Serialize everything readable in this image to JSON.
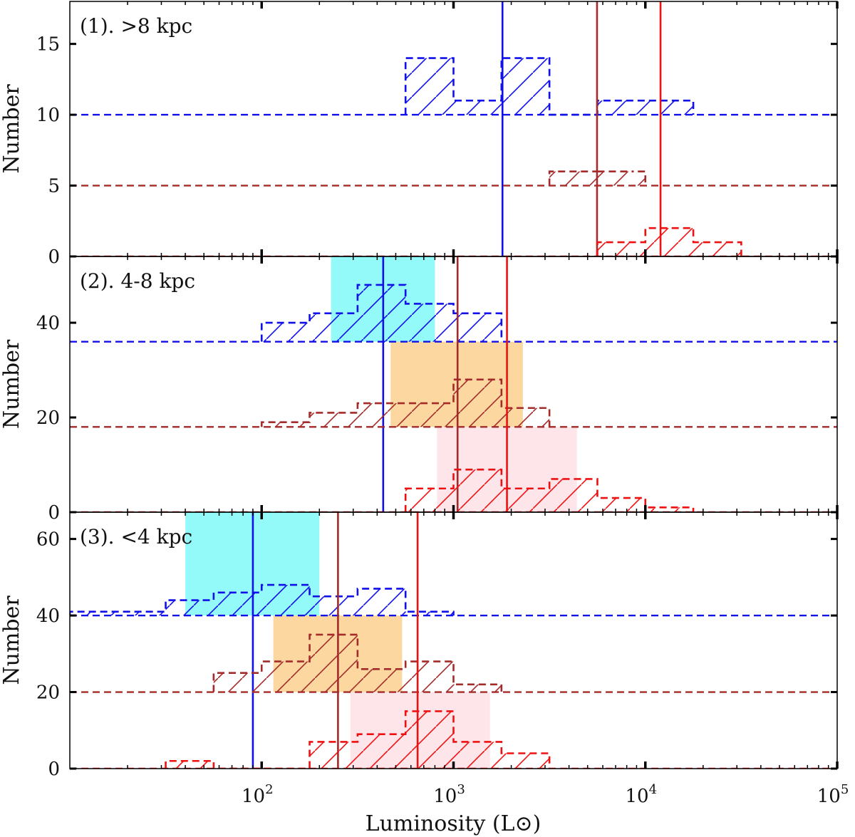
{
  "chart_data": {
    "type": "histogram",
    "xlabel": "Luminosity (L⊙)",
    "x_scale": "log",
    "xlim": [
      10,
      100000
    ],
    "x_ticks": [
      {
        "value": 100,
        "base": "10",
        "exp": "2"
      },
      {
        "value": 1000,
        "base": "10",
        "exp": "3"
      },
      {
        "value": 10000,
        "base": "10",
        "exp": "4"
      },
      {
        "value": 100000,
        "base": "10",
        "exp": "5"
      }
    ],
    "bin_edges": [
      10,
      17.8,
      31.6,
      56.2,
      100,
      177.8,
      316.2,
      562.3,
      1000,
      1778.3,
      3162.3,
      5623.4,
      10000,
      17782.8,
      31622.8,
      56234.1,
      100000
    ],
    "colors": {
      "blue": "#1010e8",
      "brown": "#a52a2a",
      "red": "#ee1111",
      "cyan": "#00f0f0",
      "orange": "#f7a21c",
      "pink": "#fbc1cc"
    },
    "panels": [
      {
        "title": "(1).  >8 kpc",
        "ylabel": "Number",
        "ylim": [
          0,
          18
        ],
        "yticks": [
          "0",
          "5",
          "10",
          "15"
        ],
        "yticks_values": [
          0,
          5,
          10,
          15
        ],
        "series": [
          {
            "name": "blue",
            "color_key": "blue",
            "baseline": 10,
            "counts": [
              0,
              0,
              0,
              0,
              0,
              0,
              0,
              4,
              1,
              4,
              0,
              1,
              1,
              0,
              0,
              0
            ],
            "median": 1800
          },
          {
            "name": "brown",
            "color_key": "brown",
            "baseline": 5,
            "counts": [
              0,
              0,
              0,
              0,
              0,
              0,
              0,
              0,
              0,
              0,
              1,
              1,
              0,
              0,
              0,
              0
            ],
            "median": 5600
          },
          {
            "name": "red",
            "color_key": "red",
            "baseline": 0,
            "counts": [
              0,
              0,
              0,
              0,
              0,
              0,
              0,
              0,
              0,
              0,
              0,
              1,
              2,
              1,
              0,
              0
            ],
            "median": 12000
          }
        ],
        "shaded_ranges": []
      },
      {
        "title": "(2).  4-8 kpc",
        "ylabel": "Number",
        "ylim": [
          0,
          54
        ],
        "yticks": [
          "0",
          "20",
          "40"
        ],
        "yticks_values": [
          0,
          20,
          40
        ],
        "series": [
          {
            "name": "blue",
            "color_key": "blue",
            "baseline": 36,
            "counts": [
              0,
              0,
              0,
              0,
              4,
              6,
              12,
              8,
              6,
              0,
              0,
              0,
              0,
              0,
              0,
              0
            ],
            "median": 430
          },
          {
            "name": "brown",
            "color_key": "brown",
            "baseline": 18,
            "counts": [
              0,
              0,
              0,
              0,
              1,
              3,
              5,
              5,
              10,
              4,
              0,
              0,
              0,
              0,
              0,
              0
            ],
            "median": 1050
          },
          {
            "name": "red",
            "color_key": "red",
            "baseline": 0,
            "counts": [
              0,
              0,
              0,
              0,
              0,
              0,
              0,
              5,
              9,
              5,
              7,
              3,
              1,
              0,
              0,
              0
            ],
            "median": 1900
          }
        ],
        "shaded_ranges": [
          {
            "color_key": "cyan",
            "x": [
              230,
              800
            ],
            "y": [
              36,
              54
            ]
          },
          {
            "color_key": "orange",
            "x": [
              470,
              2300
            ],
            "y": [
              18,
              36
            ]
          },
          {
            "color_key": "pink",
            "x": [
              820,
              4400
            ],
            "y": [
              0,
              18
            ]
          }
        ]
      },
      {
        "title": "(3).  <4 kpc",
        "ylabel": "Number",
        "ylim": [
          0,
          67
        ],
        "yticks": [
          "0",
          "20",
          "40",
          "60"
        ],
        "yticks_values": [
          0,
          20,
          40,
          60
        ],
        "series": [
          {
            "name": "blue",
            "color_key": "blue",
            "baseline": 40,
            "counts": [
              1,
              1,
              4,
              6,
              8,
              5,
              7,
              1,
              0,
              0,
              0,
              0,
              0,
              0,
              0,
              0
            ],
            "median": 90
          },
          {
            "name": "brown",
            "color_key": "brown",
            "baseline": 20,
            "counts": [
              0,
              0,
              0,
              5,
              8,
              15,
              6,
              8,
              2,
              0,
              0,
              0,
              0,
              0,
              0,
              0
            ],
            "median": 250
          },
          {
            "name": "red",
            "color_key": "red",
            "baseline": 0,
            "counts": [
              0,
              0,
              2,
              0,
              0,
              7,
              9,
              15,
              7,
              4,
              0,
              0,
              0,
              0,
              0,
              0
            ],
            "median": 650
          }
        ],
        "shaded_ranges": [
          {
            "color_key": "cyan",
            "x": [
              40,
              200
            ],
            "y": [
              40,
              67
            ]
          },
          {
            "color_key": "orange",
            "x": [
              115,
              540
            ],
            "y": [
              20,
              40
            ]
          },
          {
            "color_key": "pink",
            "x": [
              290,
              1550
            ],
            "y": [
              0,
              20
            ]
          }
        ]
      }
    ]
  }
}
